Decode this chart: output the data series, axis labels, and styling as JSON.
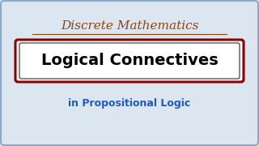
{
  "bg_color": "#dce6f1",
  "border_color": "#8aaac8",
  "title_text": "Discrete Mathematics",
  "title_color": "#8B4513",
  "main_text": "Logical Connectives",
  "main_text_color": "#000000",
  "box_bg": "#ffffff",
  "box_border_outer": "#8B0000",
  "box_border_inner": "#111111",
  "subtitle_text": "in Propositional Logic",
  "subtitle_color": "#1a5bbf",
  "title_fontsize": 11,
  "main_fontsize": 14,
  "subtitle_fontsize": 9
}
